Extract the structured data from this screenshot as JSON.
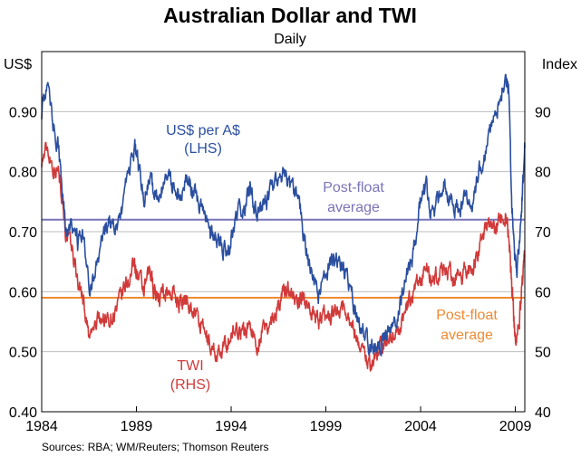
{
  "chart_data": {
    "type": "line",
    "title": "Australian Dollar and TWI",
    "subtitle": "Daily",
    "source": "Sources: RBA; WM/Reuters; Thomson Reuters",
    "colors": {
      "aud": "#2b4fa0",
      "twi": "#d13a3a",
      "aud_avg": "#7a74b8",
      "twi_avg": "#f08a32",
      "grid": "#bdbdbd"
    },
    "x_ticks": [
      "1984",
      "1989",
      "1994",
      "1999",
      "2004",
      "2009"
    ],
    "x_range": [
      1984,
      2009.5
    ],
    "left_axis": {
      "unit": "US$",
      "range": [
        0.4,
        1.0
      ],
      "ticks": [
        "0.40",
        "0.50",
        "0.60",
        "0.70",
        "0.80",
        "0.90"
      ]
    },
    "right_axis": {
      "unit": "Index",
      "range": [
        40,
        100
      ],
      "ticks": [
        "40",
        "50",
        "60",
        "70",
        "80",
        "90"
      ]
    },
    "series": [
      {
        "name": "US$ per A$",
        "note": "(LHS)",
        "axis": "left",
        "points": [
          [
            1984.0,
            0.9
          ],
          [
            1984.3,
            0.95
          ],
          [
            1984.6,
            0.88
          ],
          [
            1984.9,
            0.84
          ],
          [
            1985.1,
            0.76
          ],
          [
            1985.3,
            0.69
          ],
          [
            1985.6,
            0.71
          ],
          [
            1985.9,
            0.68
          ],
          [
            1986.2,
            0.7
          ],
          [
            1986.5,
            0.61
          ],
          [
            1986.8,
            0.63
          ],
          [
            1987.1,
            0.66
          ],
          [
            1987.4,
            0.71
          ],
          [
            1987.7,
            0.72
          ],
          [
            1988.0,
            0.71
          ],
          [
            1988.3,
            0.75
          ],
          [
            1988.6,
            0.8
          ],
          [
            1988.9,
            0.84
          ],
          [
            1989.1,
            0.81
          ],
          [
            1989.4,
            0.76
          ],
          [
            1989.7,
            0.8
          ],
          [
            1989.9,
            0.77
          ],
          [
            1990.2,
            0.75
          ],
          [
            1990.5,
            0.79
          ],
          [
            1990.8,
            0.78
          ],
          [
            1991.1,
            0.77
          ],
          [
            1991.4,
            0.76
          ],
          [
            1991.7,
            0.79
          ],
          [
            1992.0,
            0.76
          ],
          [
            1992.3,
            0.75
          ],
          [
            1992.6,
            0.72
          ],
          [
            1992.9,
            0.69
          ],
          [
            1993.2,
            0.69
          ],
          [
            1993.5,
            0.67
          ],
          [
            1993.8,
            0.66
          ],
          [
            1994.1,
            0.7
          ],
          [
            1994.4,
            0.73
          ],
          [
            1994.7,
            0.74
          ],
          [
            1995.0,
            0.77
          ],
          [
            1995.3,
            0.73
          ],
          [
            1995.6,
            0.74
          ],
          [
            1995.9,
            0.75
          ],
          [
            1996.2,
            0.77
          ],
          [
            1996.5,
            0.79
          ],
          [
            1996.8,
            0.8
          ],
          [
            1997.1,
            0.78
          ],
          [
            1997.4,
            0.76
          ],
          [
            1997.7,
            0.73
          ],
          [
            1998.0,
            0.66
          ],
          [
            1998.3,
            0.63
          ],
          [
            1998.6,
            0.59
          ],
          [
            1998.9,
            0.62
          ],
          [
            1999.2,
            0.64
          ],
          [
            1999.5,
            0.65
          ],
          [
            1999.8,
            0.64
          ],
          [
            2000.1,
            0.63
          ],
          [
            2000.4,
            0.59
          ],
          [
            2000.7,
            0.55
          ],
          [
            2001.0,
            0.53
          ],
          [
            2001.3,
            0.51
          ],
          [
            2001.6,
            0.51
          ],
          [
            2001.9,
            0.51
          ],
          [
            2002.2,
            0.53
          ],
          [
            2002.5,
            0.55
          ],
          [
            2002.8,
            0.56
          ],
          [
            2003.1,
            0.6
          ],
          [
            2003.4,
            0.64
          ],
          [
            2003.7,
            0.68
          ],
          [
            2004.0,
            0.75
          ],
          [
            2004.3,
            0.77
          ],
          [
            2004.6,
            0.72
          ],
          [
            2004.9,
            0.76
          ],
          [
            2005.2,
            0.78
          ],
          [
            2005.5,
            0.76
          ],
          [
            2005.8,
            0.74
          ],
          [
            2006.1,
            0.74
          ],
          [
            2006.4,
            0.76
          ],
          [
            2006.7,
            0.75
          ],
          [
            2007.0,
            0.79
          ],
          [
            2007.3,
            0.82
          ],
          [
            2007.6,
            0.86
          ],
          [
            2007.9,
            0.88
          ],
          [
            2008.2,
            0.92
          ],
          [
            2008.5,
            0.96
          ],
          [
            2008.65,
            0.93
          ],
          [
            2008.8,
            0.76
          ],
          [
            2008.95,
            0.66
          ],
          [
            2009.1,
            0.64
          ],
          [
            2009.25,
            0.7
          ],
          [
            2009.4,
            0.78
          ],
          [
            2009.5,
            0.84
          ]
        ]
      },
      {
        "name": "TWI",
        "note": "(RHS)",
        "axis": "right",
        "points": [
          [
            1984.0,
            82
          ],
          [
            1984.3,
            84
          ],
          [
            1984.6,
            81
          ],
          [
            1984.9,
            80
          ],
          [
            1985.1,
            76
          ],
          [
            1985.3,
            69
          ],
          [
            1985.6,
            67
          ],
          [
            1985.9,
            62
          ],
          [
            1986.2,
            59
          ],
          [
            1986.5,
            52
          ],
          [
            1986.8,
            54
          ],
          [
            1987.1,
            56
          ],
          [
            1987.4,
            55
          ],
          [
            1987.7,
            56
          ],
          [
            1988.0,
            57
          ],
          [
            1988.3,
            60
          ],
          [
            1988.6,
            62
          ],
          [
            1988.9,
            65
          ],
          [
            1989.1,
            62
          ],
          [
            1989.4,
            60
          ],
          [
            1989.7,
            63
          ],
          [
            1989.9,
            61
          ],
          [
            1990.2,
            59
          ],
          [
            1990.5,
            60
          ],
          [
            1990.8,
            60
          ],
          [
            1991.1,
            59
          ],
          [
            1991.4,
            58
          ],
          [
            1991.7,
            59
          ],
          [
            1992.0,
            57
          ],
          [
            1992.3,
            55
          ],
          [
            1992.6,
            53
          ],
          [
            1992.9,
            51
          ],
          [
            1993.2,
            50
          ],
          [
            1993.5,
            49
          ],
          [
            1993.8,
            52
          ],
          [
            1994.1,
            53
          ],
          [
            1994.4,
            54
          ],
          [
            1994.7,
            53
          ],
          [
            1995.0,
            55
          ],
          [
            1995.3,
            51
          ],
          [
            1995.6,
            53
          ],
          [
            1995.9,
            54
          ],
          [
            1996.2,
            56
          ],
          [
            1996.5,
            58
          ],
          [
            1996.8,
            60
          ],
          [
            1997.1,
            61
          ],
          [
            1997.4,
            58
          ],
          [
            1997.7,
            59
          ],
          [
            1998.0,
            58
          ],
          [
            1998.3,
            57
          ],
          [
            1998.6,
            55
          ],
          [
            1998.9,
            56
          ],
          [
            1999.2,
            56
          ],
          [
            1999.5,
            57
          ],
          [
            1999.8,
            58
          ],
          [
            2000.1,
            57
          ],
          [
            2000.4,
            54
          ],
          [
            2000.7,
            52
          ],
          [
            2001.0,
            50
          ],
          [
            2001.3,
            48
          ],
          [
            2001.6,
            49
          ],
          [
            2001.9,
            51
          ],
          [
            2002.2,
            52
          ],
          [
            2002.5,
            53
          ],
          [
            2002.8,
            53
          ],
          [
            2003.1,
            56
          ],
          [
            2003.4,
            58
          ],
          [
            2003.7,
            60
          ],
          [
            2004.0,
            62
          ],
          [
            2004.3,
            64
          ],
          [
            2004.6,
            61
          ],
          [
            2004.9,
            63
          ],
          [
            2005.2,
            64
          ],
          [
            2005.5,
            63
          ],
          [
            2005.8,
            62
          ],
          [
            2006.1,
            62
          ],
          [
            2006.4,
            64
          ],
          [
            2006.7,
            64
          ],
          [
            2007.0,
            66
          ],
          [
            2007.3,
            69
          ],
          [
            2007.6,
            71
          ],
          [
            2007.9,
            70
          ],
          [
            2008.2,
            72
          ],
          [
            2008.5,
            73
          ],
          [
            2008.65,
            70
          ],
          [
            2008.8,
            62
          ],
          [
            2008.95,
            54
          ],
          [
            2009.1,
            52
          ],
          [
            2009.25,
            57
          ],
          [
            2009.4,
            62
          ],
          [
            2009.5,
            66
          ]
        ]
      }
    ],
    "reference_lines": [
      {
        "name": "US$ post-float average",
        "axis": "left",
        "value": 0.72
      },
      {
        "name": "TWI post-float average",
        "axis": "right",
        "value": 59
      }
    ],
    "annotations": {
      "aud_label": "US$ per A$",
      "aud_note": "(LHS)",
      "twi_label": "TWI",
      "twi_note": "(RHS)",
      "aud_avg_label_1": "Post-float",
      "aud_avg_label_2": "average",
      "twi_avg_label_1": "Post-float",
      "twi_avg_label_2": "average"
    }
  }
}
